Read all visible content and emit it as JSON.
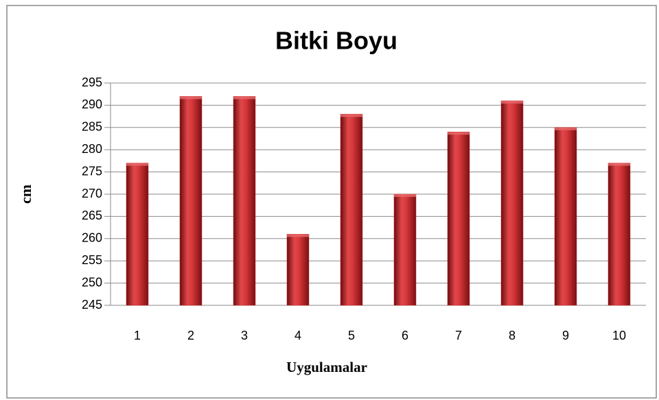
{
  "chart_data": {
    "type": "bar",
    "title": "Bitki Boyu",
    "x_label": "Uygulamalar",
    "y_label": "cm",
    "categories": [
      "1",
      "2",
      "3",
      "4",
      "5",
      "6",
      "7",
      "8",
      "9",
      "10"
    ],
    "values": [
      277,
      292,
      292,
      261,
      288,
      270,
      284,
      291,
      285,
      277
    ],
    "color": "#c8262a",
    "ylim": [
      245,
      295
    ],
    "yticks": [
      245,
      250,
      255,
      260,
      265,
      270,
      275,
      280,
      285,
      290,
      295
    ],
    "grid": true
  }
}
